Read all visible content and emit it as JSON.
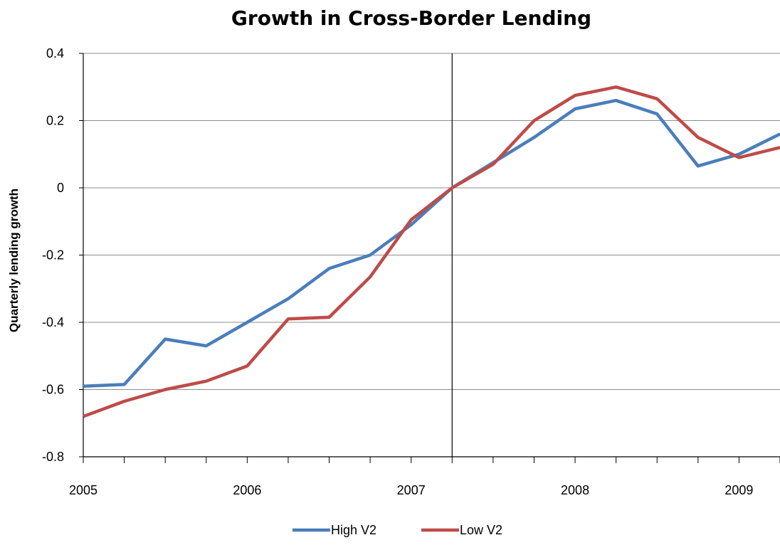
{
  "chart_data": {
    "type": "line",
    "title": "Growth in Cross-Border Lending",
    "xlabel": "",
    "ylabel": "Quarterly lending growth",
    "x": [
      2005.0,
      2005.25,
      2005.5,
      2005.75,
      2006.0,
      2006.25,
      2006.5,
      2006.75,
      2007.0,
      2007.25,
      2007.5,
      2007.75,
      2008.0,
      2008.25,
      2008.5,
      2008.75,
      2009.0,
      2009.25
    ],
    "x_ticks": [
      "2005",
      "2006",
      "2007",
      "2008",
      "2009"
    ],
    "x_tick_values": [
      2005,
      2006,
      2007,
      2008,
      2009
    ],
    "xlim": [
      2005,
      2009.25
    ],
    "ylim": [
      -0.8,
      0.4
    ],
    "y_ticks": [
      "0.4",
      "0.2",
      "0",
      "-0.2",
      "-0.4",
      "-0.6",
      "-0.8"
    ],
    "y_tick_values": [
      0.4,
      0.2,
      0,
      -0.2,
      -0.4,
      -0.6,
      -0.8
    ],
    "grid": "horizontal",
    "vertical_marker_x": 2007.25,
    "legend_position": "bottom-center",
    "series": [
      {
        "name": "High V2",
        "color": "#4a7ebb",
        "values": [
          -0.59,
          -0.585,
          -0.45,
          -0.47,
          -0.4,
          -0.33,
          -0.24,
          -0.2,
          -0.11,
          0.0,
          0.075,
          0.15,
          0.235,
          0.26,
          0.22,
          0.065,
          0.1,
          0.16
        ]
      },
      {
        "name": "Low V2",
        "color": "#be4b48",
        "values": [
          -0.68,
          -0.635,
          -0.6,
          -0.575,
          -0.53,
          -0.39,
          -0.385,
          -0.265,
          -0.095,
          0.0,
          0.07,
          0.2,
          0.275,
          0.3,
          0.265,
          0.15,
          0.09,
          0.12
        ]
      }
    ]
  }
}
